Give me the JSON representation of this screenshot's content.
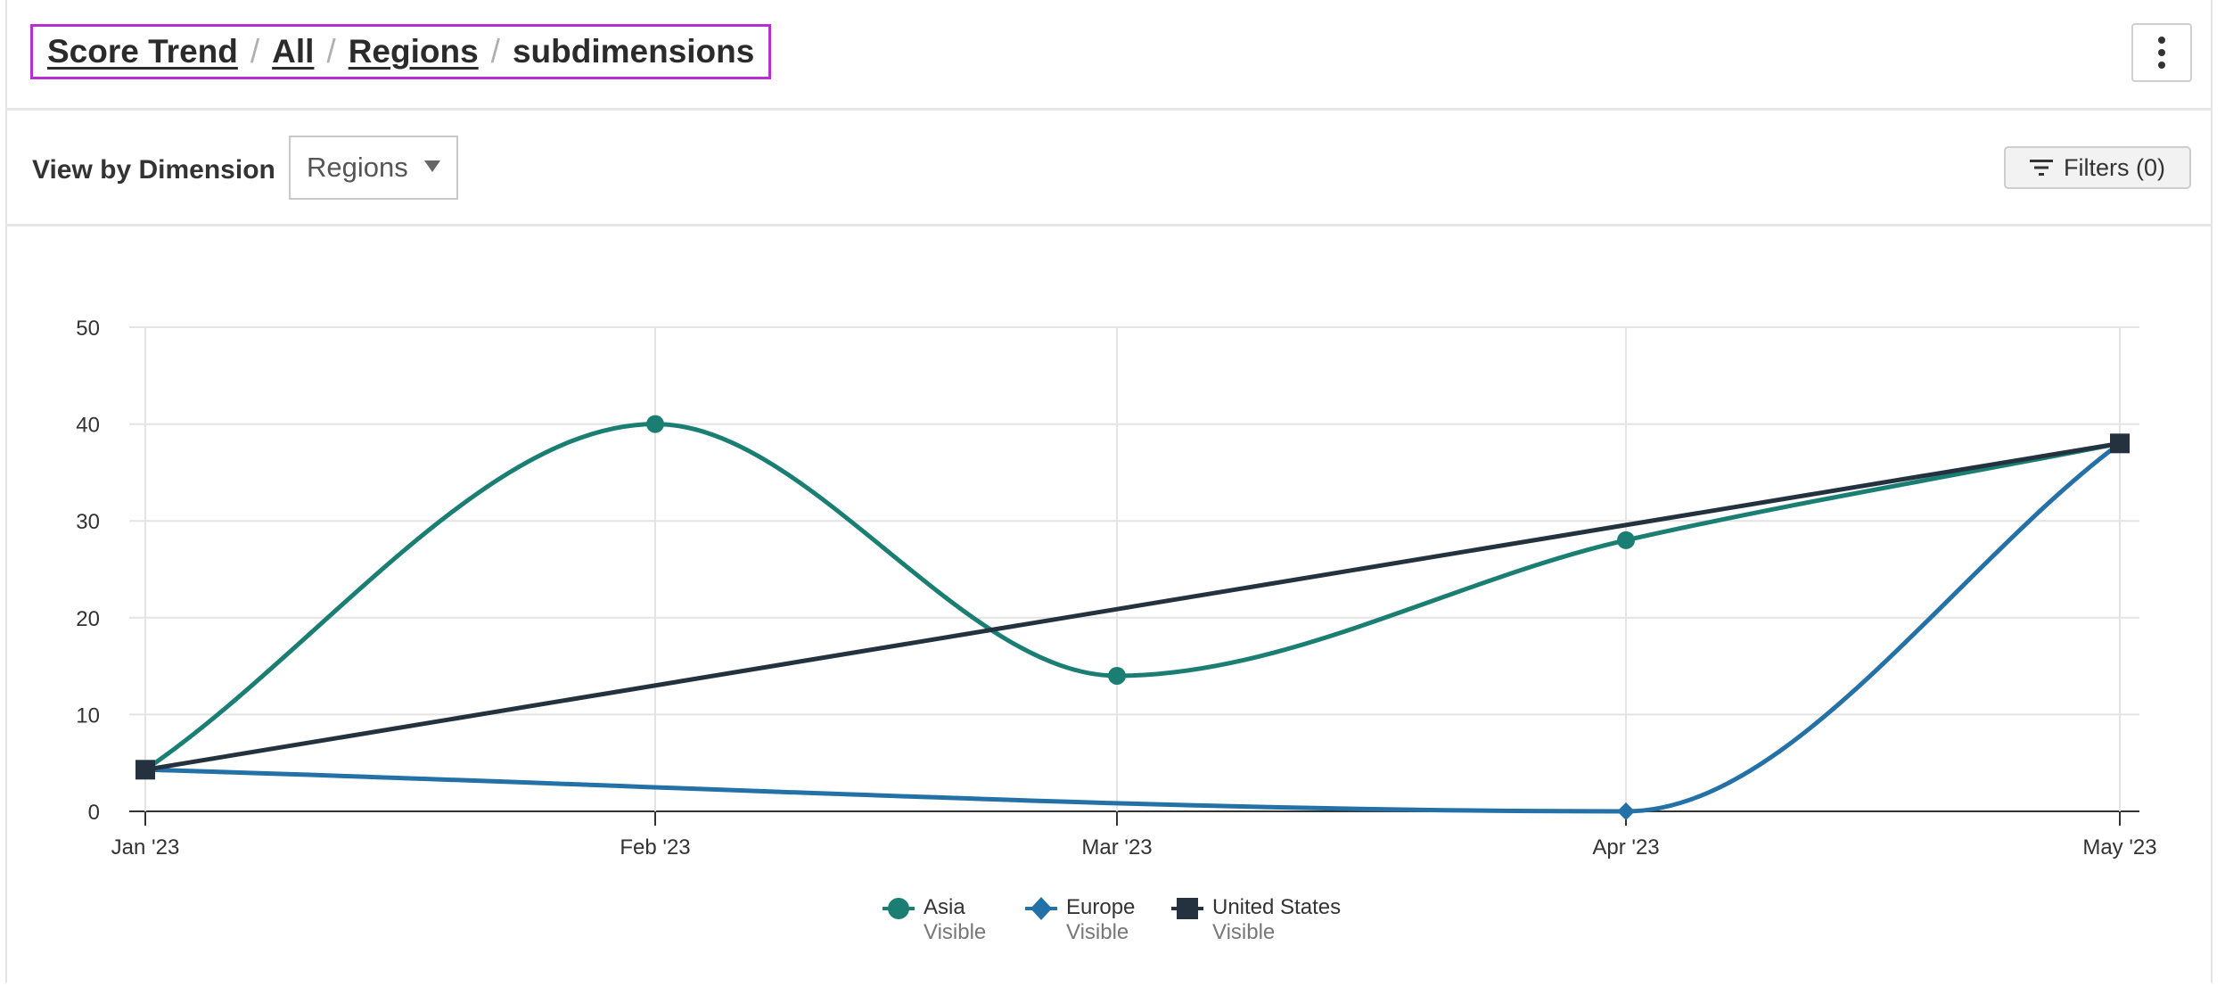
{
  "breadcrumb": {
    "items": [
      "Score Trend",
      "All",
      "Regions"
    ],
    "separator": "/",
    "current": "subdimensions"
  },
  "menu_icon": "more-vertical-icon",
  "controls": {
    "view_label": "View by Dimension",
    "dimension_select": {
      "value": "Regions"
    },
    "filters_label": "Filters (0)",
    "filters_icon": "filter-list-icon"
  },
  "colors": {
    "asia": "#1a7f72",
    "europe": "#2471a8",
    "united_states": "#243240",
    "highlight_border": "#b62fd1"
  },
  "chart_data": {
    "type": "line",
    "x": [
      "Jan '23",
      "Feb '23",
      "Mar '23",
      "Apr '23",
      "May '23"
    ],
    "ylim": [
      0,
      50
    ],
    "yticks": [
      0,
      10,
      20,
      30,
      40,
      50
    ],
    "grid": true,
    "legend_position": "bottom-center",
    "series": [
      {
        "name": "Asia",
        "state": "Visible",
        "marker": "circle",
        "values": [
          4.3,
          40,
          14,
          28,
          38
        ]
      },
      {
        "name": "Europe",
        "state": "Visible",
        "marker": "diamond",
        "values": [
          4.3,
          null,
          null,
          0,
          38
        ]
      },
      {
        "name": "United States",
        "state": "Visible",
        "marker": "square",
        "values": [
          4.3,
          null,
          null,
          null,
          38
        ]
      }
    ]
  }
}
